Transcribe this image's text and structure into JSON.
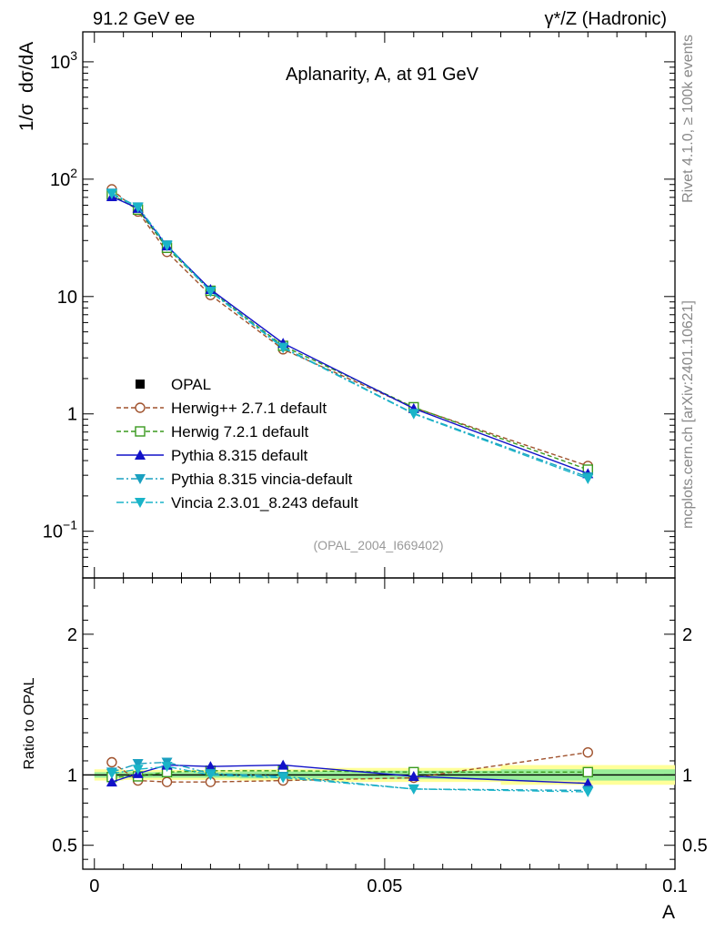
{
  "header": {
    "left": "91.2 GeV ee",
    "right": "γ*/Z (Hadronic)"
  },
  "side_labels": {
    "top": "Rivet 4.1.0, ≥ 100k events",
    "bottom": "mcplots.cern.ch [arXiv:2401.10621]"
  },
  "colors": {
    "OPAL": "#000000",
    "Herwig++ 2.7.1 default": "#a0522d",
    "Herwig 7.2.1 default": "#3a9a1f",
    "Pythia 8.315 default": "#1212c8",
    "Pythia 8.315 vincia-default": "#1aa0c0",
    "Vincia 2.3.01_8.243 default": "#1ab4c8",
    "band_outer": "#ffff99",
    "band_inner": "#99ee99"
  },
  "chart_data": [
    {
      "type": "line",
      "title": "Aplanarity, A, at 91 GeV",
      "ylabel": "1/σ  dσ/dA",
      "xlabel": "A",
      "yscale": "log",
      "xlim": [
        -0.002,
        0.1
      ],
      "ylim": [
        0.04,
        1800
      ],
      "yticks": [
        "10−1",
        "1",
        "10",
        "102",
        "103"
      ],
      "watermark": "(OPAL_2004_I669402)",
      "x": [
        0.003,
        0.0075,
        0.0125,
        0.02,
        0.0325,
        0.055,
        0.085
      ],
      "series": [
        {
          "name": "OPAL",
          "marker": "square-filled",
          "line": "none",
          "values": [
            75,
            56,
            25.5,
            11,
            3.75,
            1.12,
            0.33
          ],
          "errors": [
            1.5,
            1.0,
            0.5,
            0.2,
            0.08,
            0.03,
            0.02
          ]
        },
        {
          "name": "Herwig++ 2.7.1 default",
          "marker": "circle-open",
          "line": "dashed",
          "values": [
            82,
            53,
            24,
            10.3,
            3.55,
            1.13,
            0.36
          ]
        },
        {
          "name": "Herwig 7.2.1 default",
          "marker": "square-open",
          "line": "dashed",
          "values": [
            74,
            55,
            26,
            11.2,
            3.8,
            1.14,
            0.335
          ]
        },
        {
          "name": "Pythia 8.315 default",
          "marker": "triangle-up-filled",
          "line": "solid",
          "values": [
            71,
            56.5,
            27,
            11.5,
            4.0,
            1.11,
            0.31
          ]
        },
        {
          "name": "Pythia 8.315 vincia-default",
          "marker": "triangle-down-filled",
          "line": "dashdot",
          "values": [
            76,
            58,
            27.5,
            11.1,
            3.7,
            1.01,
            0.29
          ]
        },
        {
          "name": "Vincia 2.3.01_8.243 default",
          "marker": "triangle-down-filled",
          "line": "dashdot",
          "values": [
            75,
            57.5,
            27,
            11,
            3.65,
            1.0,
            0.28
          ]
        }
      ]
    },
    {
      "type": "line",
      "title": "",
      "ylabel": "Ratio to OPAL",
      "xlabel": "A",
      "xlim": [
        -0.002,
        0.1
      ],
      "ylim": [
        0.33,
        2.4
      ],
      "yticks": [
        "0.5",
        "1",
        "2"
      ],
      "xticks": [
        "0",
        "0.05",
        "0.1"
      ],
      "band": {
        "x_edges": [
          0,
          0.005,
          0.01,
          0.015,
          0.025,
          0.04,
          0.07,
          0.1
        ],
        "outer": [
          0.04,
          0.035,
          0.035,
          0.035,
          0.04,
          0.05,
          0.07
        ],
        "inner": [
          0.02,
          0.02,
          0.02,
          0.02,
          0.025,
          0.03,
          0.04
        ]
      },
      "x": [
        0.003,
        0.0075,
        0.0125,
        0.02,
        0.0325,
        0.055,
        0.085
      ],
      "series": [
        {
          "name": "Herwig++ 2.7.1 default",
          "values": [
            1.09,
            0.96,
            0.95,
            0.95,
            0.96,
            0.98,
            1.16
          ]
        },
        {
          "name": "Herwig 7.2.1 default",
          "values": [
            0.985,
            0.99,
            1.02,
            1.03,
            1.03,
            1.02,
            1.02
          ]
        },
        {
          "name": "Pythia 8.315 default",
          "values": [
            0.95,
            1.01,
            1.07,
            1.06,
            1.07,
            0.99,
            0.94
          ]
        },
        {
          "name": "Pythia 8.315 vincia-default",
          "values": [
            1.02,
            1.08,
            1.09,
            1.01,
            0.99,
            0.9,
            0.89
          ]
        },
        {
          "name": "Vincia 2.3.01_8.243 default",
          "values": [
            1.01,
            1.04,
            1.06,
            1.0,
            0.98,
            0.9,
            0.88
          ]
        }
      ]
    }
  ]
}
